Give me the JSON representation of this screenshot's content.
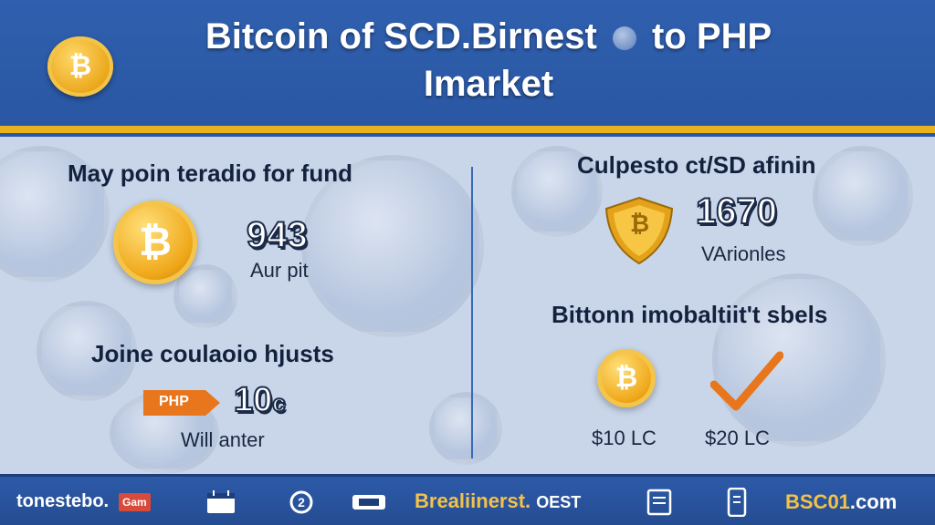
{
  "header": {
    "logo_glyph": "₿",
    "title_line1_a": "Bitcoin of SCD.Birnest",
    "title_line1_b": "to PHP",
    "title_line2": "Imarket"
  },
  "left": {
    "heading1": "May poin teradio for fund",
    "coin_glyph": "₿",
    "value1": "943",
    "value1_sub": "Aur pit",
    "heading2": "Joine coulaoio hjusts",
    "tag_label": "PHP",
    "value2": "10",
    "value2_suffix": "c",
    "value2_sub": "Will anter"
  },
  "right": {
    "heading1": "Culpesto ct/SD afinin",
    "shield_glyph": "₿",
    "value1": "1670",
    "value1_sub": "VArionles",
    "heading2": "Bittonn imobaltiit't sbels",
    "coin_glyph": "₿",
    "price_a": "$10 LC",
    "price_b": "$20 LC"
  },
  "footer": {
    "brand": "tonestebo.",
    "badge": "Gam",
    "middle_gold": "Brealiinerst.",
    "middle_white": "OEST",
    "right_white": "B",
    "right_gold": "BSC01",
    "right_suffix": ".com",
    "icons": [
      "calendar-icon",
      "refresh-icon",
      "ticket-icon",
      "document-icon",
      "phone-icon"
    ]
  },
  "colors": {
    "header_blue": "#2f5fae",
    "accent_gold": "#e8b21c",
    "text_dark": "#14213d"
  }
}
